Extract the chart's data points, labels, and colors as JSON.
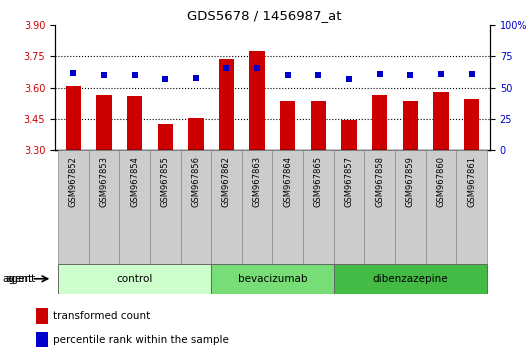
{
  "title": "GDS5678 / 1456987_at",
  "samples": [
    "GSM967852",
    "GSM967853",
    "GSM967854",
    "GSM967855",
    "GSM967856",
    "GSM967862",
    "GSM967863",
    "GSM967864",
    "GSM967865",
    "GSM967857",
    "GSM967858",
    "GSM967859",
    "GSM967860",
    "GSM967861"
  ],
  "bar_values": [
    3.61,
    3.565,
    3.56,
    3.425,
    3.455,
    3.735,
    3.775,
    3.535,
    3.535,
    3.445,
    3.565,
    3.535,
    3.578,
    3.545
  ],
  "dot_values": [
    62,
    60,
    60,
    57,
    58,
    66,
    66,
    60,
    60,
    57,
    61,
    60,
    61,
    61
  ],
  "bar_color": "#cc0000",
  "dot_color": "#0000cc",
  "ylim_left": [
    3.3,
    3.9
  ],
  "ylim_right": [
    0,
    100
  ],
  "yticks_left": [
    3.3,
    3.45,
    3.6,
    3.75,
    3.9
  ],
  "yticks_right": [
    0,
    25,
    50,
    75,
    100
  ],
  "ytick_labels_right": [
    "0",
    "25",
    "50",
    "75",
    "100%"
  ],
  "hlines": [
    3.45,
    3.6,
    3.75
  ],
  "groups": [
    {
      "label": "control",
      "start": 0,
      "end": 5
    },
    {
      "label": "bevacizumab",
      "start": 5,
      "end": 9
    },
    {
      "label": "dibenzazepine",
      "start": 9,
      "end": 14
    }
  ],
  "group_colors": [
    "#ccffcc",
    "#77dd77",
    "#44bb44"
  ],
  "agent_label": "agent",
  "legend_bar": "transformed count",
  "legend_dot": "percentile rank within the sample",
  "bar_width": 0.5,
  "baseline": 3.3,
  "tick_bg_color": "#cccccc",
  "tick_border_color": "#888888"
}
